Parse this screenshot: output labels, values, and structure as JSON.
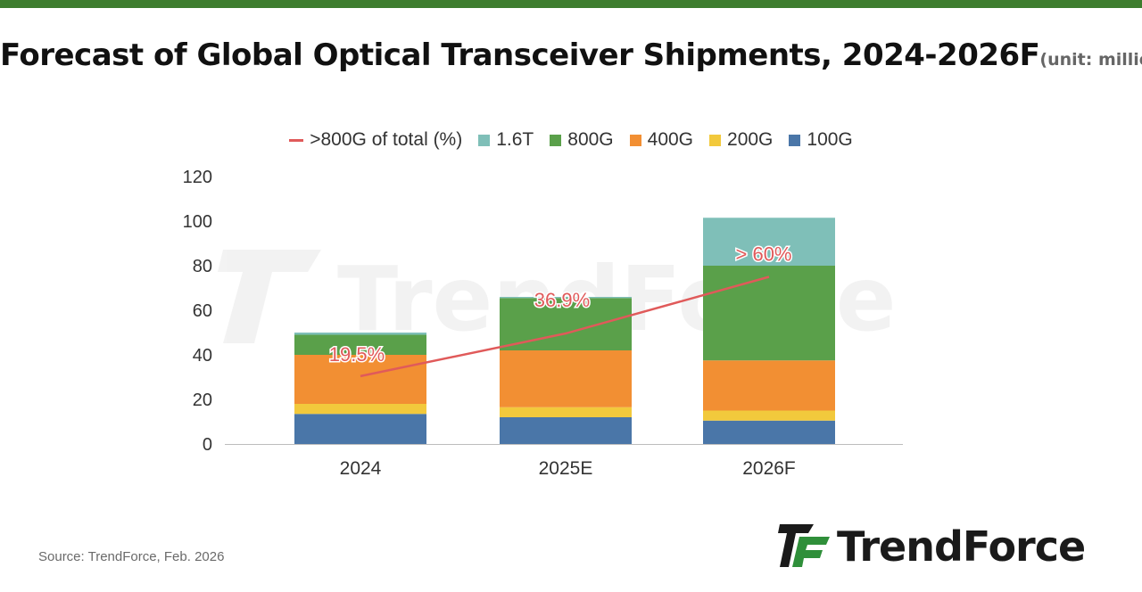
{
  "header": {
    "title": "Forecast of Global Optical Transceiver Shipments, 2024-2026F",
    "unit": "(unit: million)"
  },
  "colors": {
    "top_bar": "#3e7d2e",
    "series_100G": "#4a76a8",
    "series_200G": "#f2c93c",
    "series_400G": "#f28f33",
    "series_800G": "#5aa04a",
    "series_1_6T": "#7fbfb8",
    "share_line": "#e05a5a",
    "logo_green": "#2f8f3a"
  },
  "watermark": {
    "text": "TrendForce"
  },
  "chart_data": {
    "type": "bar",
    "stacked": true,
    "categories": [
      "2024",
      "2025E",
      "2026F"
    ],
    "series": [
      {
        "name": "100G",
        "values": [
          13.5,
          12,
          10.5
        ]
      },
      {
        "name": "200G",
        "values": [
          4.5,
          4.5,
          4.5
        ]
      },
      {
        "name": "400G",
        "values": [
          22,
          25.5,
          22.5
        ]
      },
      {
        "name": "800G",
        "values": [
          9,
          23.5,
          42.5
        ]
      },
      {
        "name": "1.6T",
        "values": [
          1,
          0.5,
          21.5
        ]
      }
    ],
    "line": {
      "name": ">800G of total (%)",
      "values": [
        19.5,
        36.9,
        60
      ],
      "labels": [
        "19.5%",
        "36.9%",
        "> 60%"
      ]
    },
    "legend": {
      "position": "top",
      "order": [
        ">800G of total (%)",
        "1.6T",
        "800G",
        "400G",
        "200G",
        "100G"
      ]
    },
    "ylim": [
      0,
      120
    ],
    "yticks": [
      0,
      20,
      40,
      60,
      80,
      100,
      120
    ],
    "grid": false
  },
  "footer": {
    "source": "Source: TrendForce, Feb. 2026",
    "logo_text": "TrendForce"
  }
}
